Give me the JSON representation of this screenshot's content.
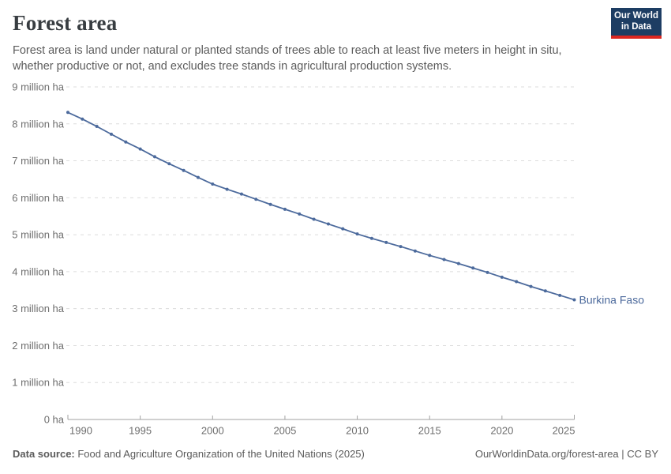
{
  "header": {
    "title": "Forest area",
    "subtitle": "Forest area is land under natural or planted stands of trees able to reach at least five meters in height in situ, whether productive or not, and excludes tree stands in agricultural production systems.",
    "logo": {
      "line1": "Our World",
      "line2": "in Data",
      "bg_color": "#1d3d63",
      "accent_color": "#dc2620"
    }
  },
  "chart_data": {
    "type": "line",
    "title": "Forest area",
    "entity": "Burkina Faso",
    "unit": "ha",
    "line_color": "#4c6a9c",
    "grid": "dashed",
    "legend_position": "end-of-line-label",
    "x": [
      1990,
      1991,
      1992,
      1993,
      1994,
      1995,
      1996,
      1997,
      1998,
      1999,
      2000,
      2001,
      2002,
      2003,
      2004,
      2005,
      2006,
      2007,
      2008,
      2009,
      2010,
      2011,
      2012,
      2013,
      2014,
      2015,
      2016,
      2017,
      2018,
      2019,
      2020,
      2021,
      2022,
      2023,
      2024,
      2025
    ],
    "values_million_ha": [
      8.31,
      8.13,
      7.93,
      7.72,
      7.51,
      7.32,
      7.11,
      6.92,
      6.74,
      6.55,
      6.37,
      6.23,
      6.1,
      5.96,
      5.82,
      5.69,
      5.56,
      5.42,
      5.29,
      5.16,
      5.02,
      4.9,
      4.79,
      4.68,
      4.56,
      4.44,
      4.33,
      4.22,
      4.1,
      3.98,
      3.85,
      3.73,
      3.6,
      3.48,
      3.36,
      3.24
    ],
    "xlim": [
      1990,
      2025
    ],
    "ylim": [
      0,
      9
    ],
    "xticks": [
      1990,
      1995,
      2000,
      2005,
      2010,
      2015,
      2020,
      2025
    ],
    "xtick_labels": [
      "1990",
      "1995",
      "2000",
      "2005",
      "2010",
      "2015",
      "2020",
      "2025"
    ],
    "yticks": [
      0,
      1,
      2,
      3,
      4,
      5,
      6,
      7,
      8,
      9
    ],
    "ytick_labels": [
      "0 ha",
      "1 million ha",
      "2 million ha",
      "3 million ha",
      "4 million ha",
      "5 million ha",
      "6 million ha",
      "7 million ha",
      "8 million ha",
      "9 million ha"
    ]
  },
  "footer": {
    "source_label": "Data source:",
    "source_text": " Food and Agriculture Organization of the United Nations (2025)",
    "right_text": "OurWorldinData.org/forest-area | CC BY"
  }
}
